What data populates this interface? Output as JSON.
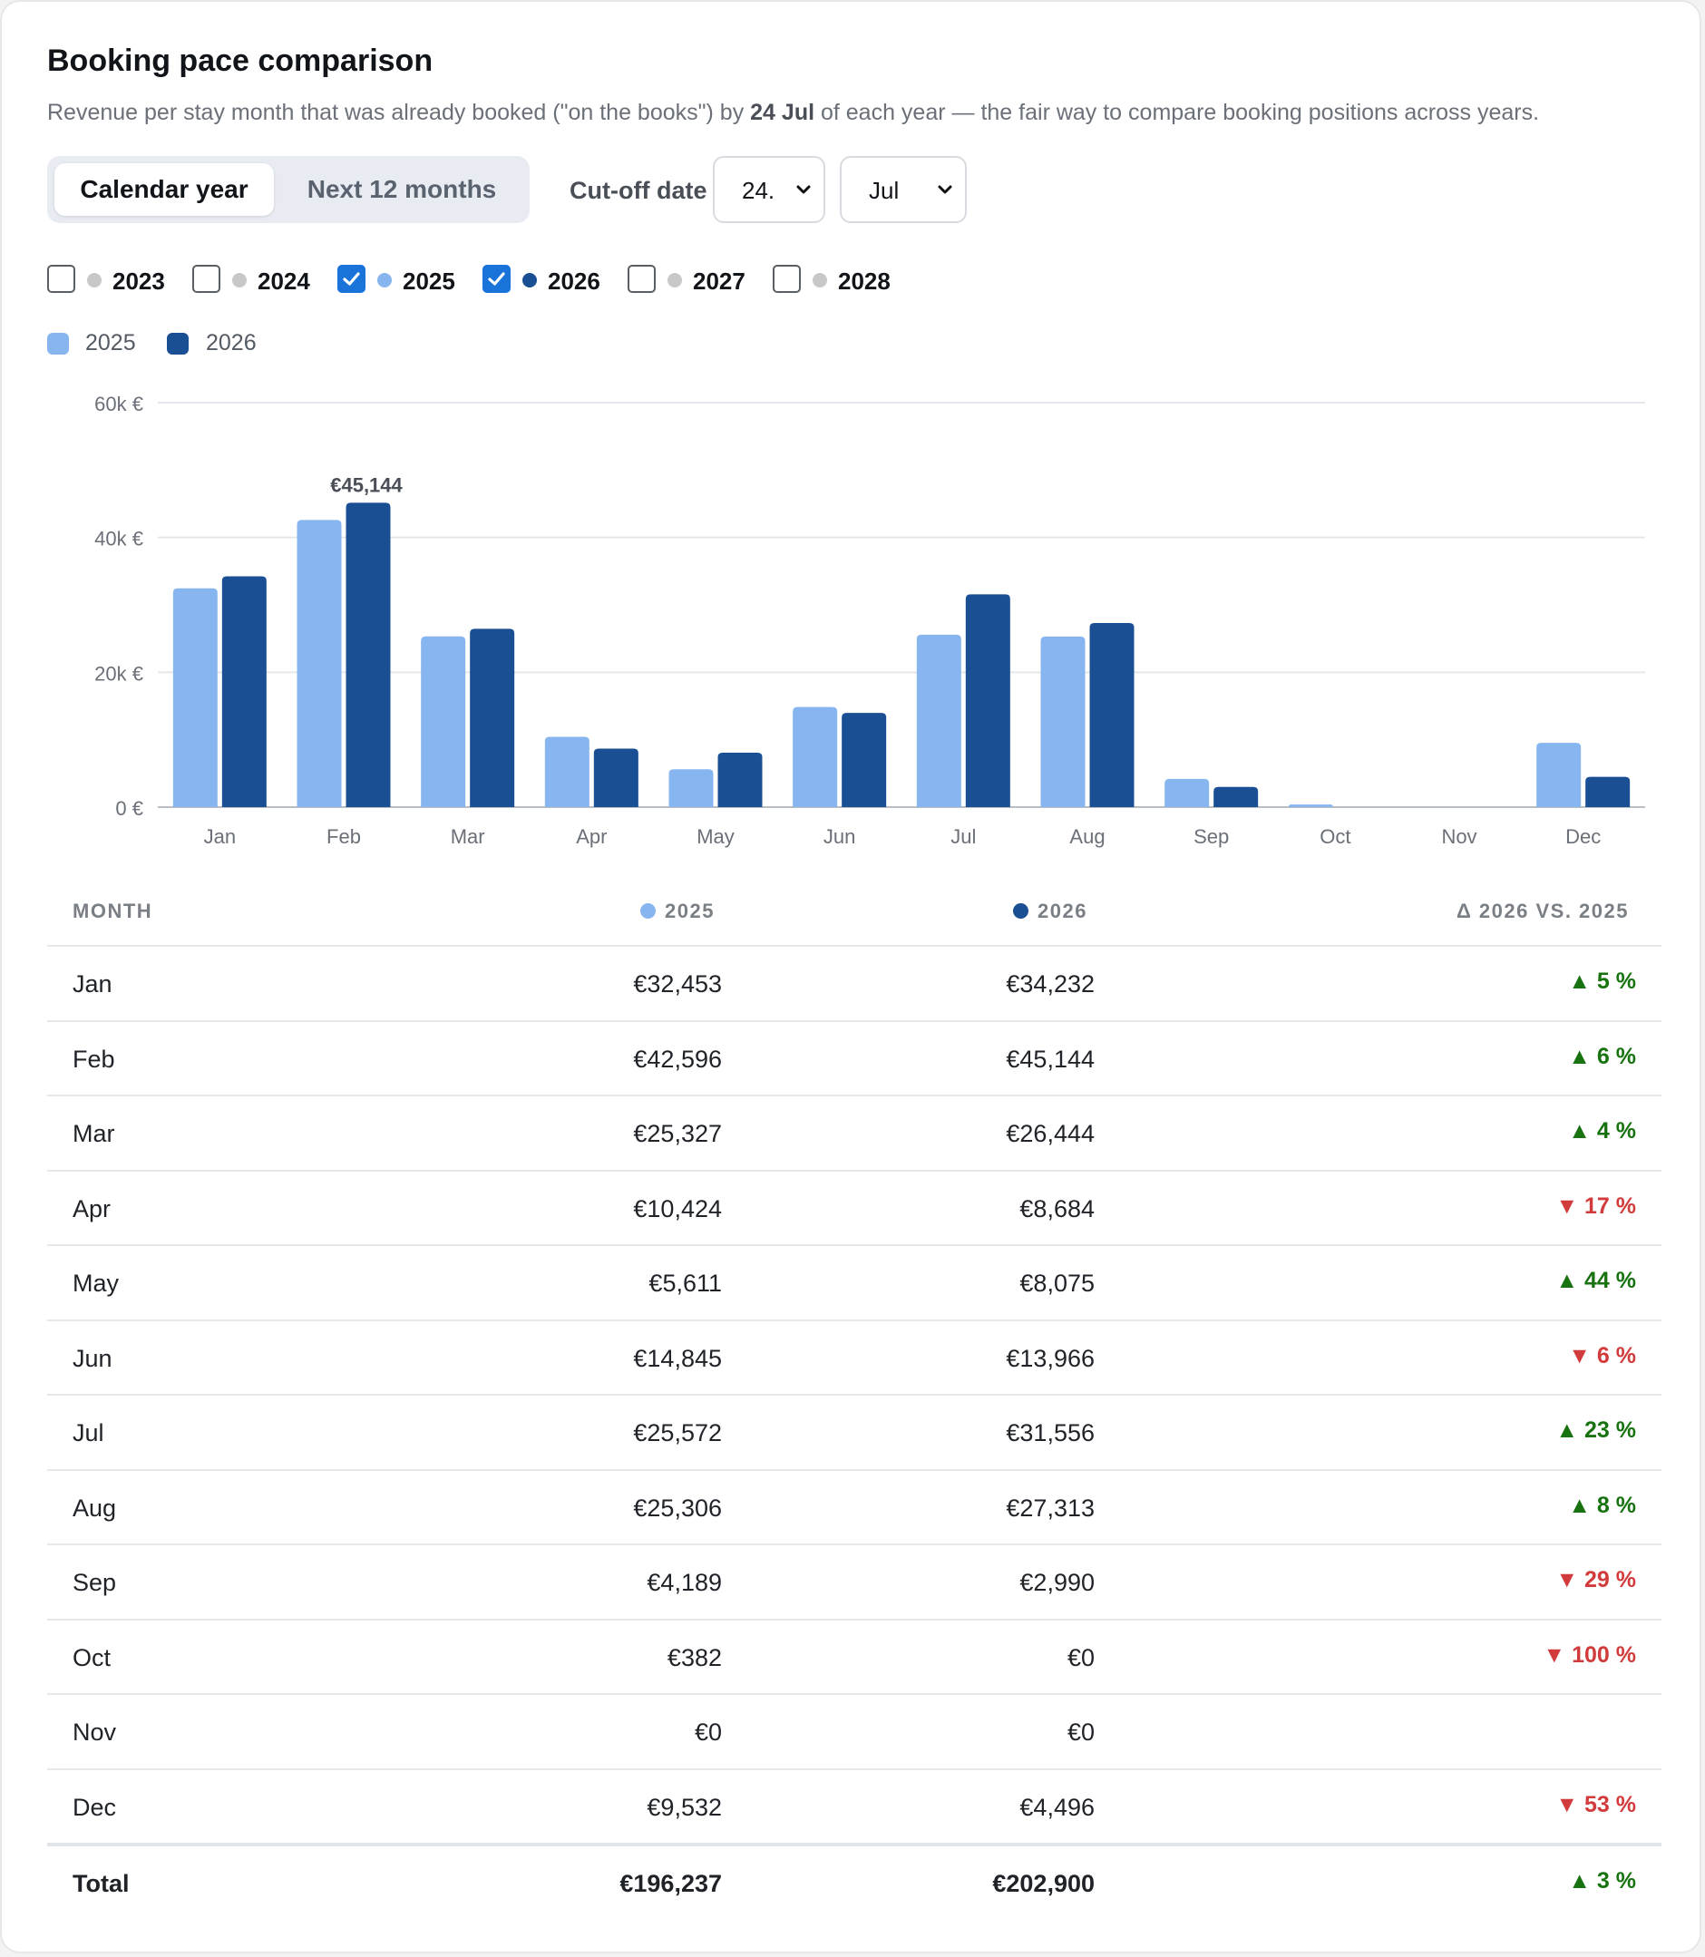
{
  "header": {
    "title": "Booking pace comparison",
    "subtitle_pre": "Revenue per stay month that was already booked (\"on the books\") by",
    "subtitle_bold": "24 Jul",
    "subtitle_post": "of each year — the fair way to compare booking positions across years."
  },
  "toggle": {
    "calendar_label": "Calendar year",
    "next12_label": "Next 12 months",
    "active": "Calendar year"
  },
  "cutoff": {
    "label": "Cut-off date",
    "day": "24.",
    "month": "Jul"
  },
  "years": [
    {
      "label": "2023",
      "checked": false,
      "color": "#c8c8c8"
    },
    {
      "label": "2024",
      "checked": false,
      "color": "#c8c8c8"
    },
    {
      "label": "2025",
      "checked": true,
      "color": "#87b5f0"
    },
    {
      "label": "2026",
      "checked": true,
      "color": "#1b4f93"
    },
    {
      "label": "2027",
      "checked": false,
      "color": "#c8c8c8"
    },
    {
      "label": "2028",
      "checked": false,
      "color": "#c8c8c8"
    }
  ],
  "legend": [
    {
      "label": "2025",
      "color": "#87b5f0"
    },
    {
      "label": "2026",
      "color": "#1b4f93"
    }
  ],
  "chart_data": {
    "type": "bar",
    "categories": [
      "Jan",
      "Feb",
      "Mar",
      "Apr",
      "May",
      "Jun",
      "Jul",
      "Aug",
      "Sep",
      "Oct",
      "Nov",
      "Dec"
    ],
    "series": [
      {
        "name": "2025",
        "color": "#87b5f0",
        "values": [
          32453,
          42596,
          25327,
          10424,
          5611,
          14845,
          25572,
          25306,
          4189,
          382,
          0,
          9532
        ]
      },
      {
        "name": "2026",
        "color": "#1b4f93",
        "values": [
          34232,
          45144,
          26444,
          8684,
          8075,
          13966,
          31556,
          27313,
          2990,
          0,
          0,
          4496
        ]
      }
    ],
    "ylim": [
      0,
      60000
    ],
    "yticks": [
      0,
      20000,
      40000,
      60000
    ],
    "ytick_labels": [
      "0 €",
      "20k €",
      "40k €",
      "60k €"
    ],
    "annotation": {
      "text": "€45,144",
      "category": "Feb",
      "series": "2026"
    },
    "grid": true,
    "legend_position": "top-left"
  },
  "table": {
    "headers": {
      "month": "MONTH",
      "a": "2025",
      "b": "2026",
      "delta": "Δ 2026 VS. 2025",
      "a_color": "#87b5f0",
      "b_color": "#1b4f93"
    },
    "rows": [
      {
        "month": "Jan",
        "a": "€32,453",
        "b": "€34,232",
        "delta": "▲ 5 %",
        "dir": "up"
      },
      {
        "month": "Feb",
        "a": "€42,596",
        "b": "€45,144",
        "delta": "▲ 6 %",
        "dir": "up"
      },
      {
        "month": "Mar",
        "a": "€25,327",
        "b": "€26,444",
        "delta": "▲ 4 %",
        "dir": "up"
      },
      {
        "month": "Apr",
        "a": "€10,424",
        "b": "€8,684",
        "delta": "▼ 17 %",
        "dir": "down"
      },
      {
        "month": "May",
        "a": "€5,611",
        "b": "€8,075",
        "delta": "▲ 44 %",
        "dir": "up"
      },
      {
        "month": "Jun",
        "a": "€14,845",
        "b": "€13,966",
        "delta": "▼ 6 %",
        "dir": "down"
      },
      {
        "month": "Jul",
        "a": "€25,572",
        "b": "€31,556",
        "delta": "▲ 23 %",
        "dir": "up"
      },
      {
        "month": "Aug",
        "a": "€25,306",
        "b": "€27,313",
        "delta": "▲ 8 %",
        "dir": "up"
      },
      {
        "month": "Sep",
        "a": "€4,189",
        "b": "€2,990",
        "delta": "▼ 29 %",
        "dir": "down"
      },
      {
        "month": "Oct",
        "a": "€382",
        "b": "€0",
        "delta": "▼ 100 %",
        "dir": "down"
      },
      {
        "month": "Nov",
        "a": "€0",
        "b": "€0",
        "delta": "",
        "dir": "none"
      },
      {
        "month": "Dec",
        "a": "€9,532",
        "b": "€4,496",
        "delta": "▼ 53 %",
        "dir": "down"
      }
    ],
    "total": {
      "month": "Total",
      "a": "€196,237",
      "b": "€202,900",
      "delta": "▲ 3 %",
      "dir": "up"
    }
  }
}
